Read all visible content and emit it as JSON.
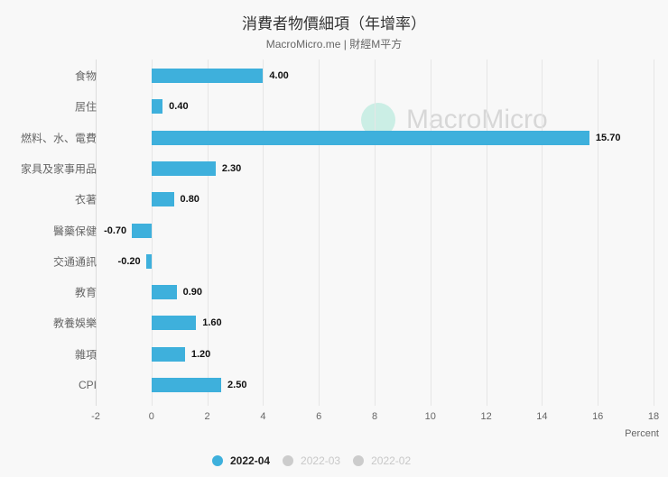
{
  "header": {
    "title": "消費者物價細項（年增率）",
    "subtitle": "MacroMicro.me | 財經M平方"
  },
  "watermark": {
    "text": "MacroMicro"
  },
  "legend": [
    {
      "label": "2022-04",
      "color": "#3eb0dc",
      "text_color": "#222",
      "active": true
    },
    {
      "label": "2022-03",
      "color": "#cccccc",
      "text_color": "#c8c8c8",
      "active": false
    },
    {
      "label": "2022-02",
      "color": "#cccccc",
      "text_color": "#c8c8c8",
      "active": false
    }
  ],
  "chart_data": {
    "type": "bar",
    "orientation": "horizontal",
    "title": "消費者物價細項（年增率）",
    "subtitle": "MacroMicro.me | 財經M平方",
    "categories": [
      "食物",
      "居住",
      "燃料、水、電費",
      "家具及家事用品",
      "衣著",
      "醫藥保健",
      "交通通訊",
      "教育",
      "教養娛樂",
      "雜項",
      "CPI"
    ],
    "series": [
      {
        "name": "2022-04",
        "color": "#3eb0dc",
        "visible": true,
        "values": [
          4.0,
          0.4,
          15.7,
          2.3,
          0.8,
          -0.7,
          -0.2,
          0.9,
          1.6,
          1.2,
          2.5
        ]
      },
      {
        "name": "2022-03",
        "color": "#cccccc",
        "visible": false,
        "values": []
      },
      {
        "name": "2022-02",
        "color": "#cccccc",
        "visible": false,
        "values": []
      }
    ],
    "value_labels": [
      "4.00",
      "0.40",
      "15.70",
      "2.30",
      "0.80",
      "-0.70",
      "-0.20",
      "0.90",
      "1.60",
      "1.20",
      "2.50"
    ],
    "xlabel": "Percent",
    "ylabel": "",
    "xlim": [
      -2,
      18
    ],
    "xticks": [
      "-2",
      "0",
      "2",
      "4",
      "6",
      "8",
      "10",
      "12",
      "14",
      "16",
      "18"
    ],
    "grid": true,
    "legend_position": "bottom"
  }
}
